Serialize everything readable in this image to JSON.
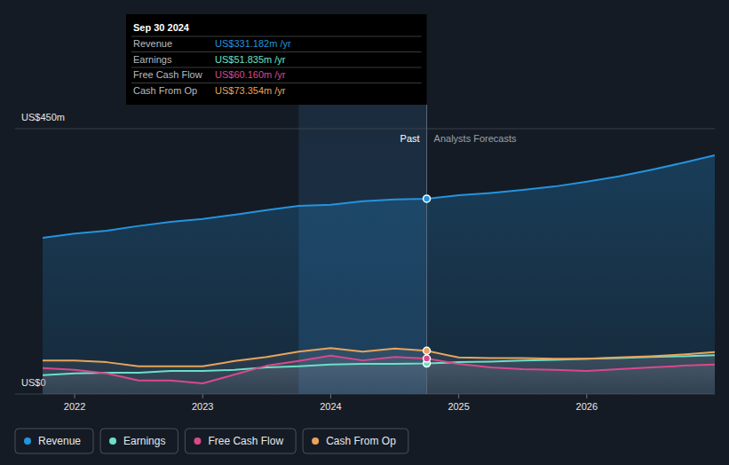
{
  "chart_data": {
    "type": "area",
    "x": [
      2021.75,
      2022,
      2022.25,
      2022.5,
      2022.75,
      2023,
      2023.25,
      2023.5,
      2023.75,
      2024,
      2024.25,
      2024.5,
      2024.75,
      2025,
      2025.25,
      2025.5,
      2025.75,
      2026,
      2026.25,
      2026.5,
      2026.75,
      2027
    ],
    "xlim": [
      2021.75,
      2027
    ],
    "xticks": [
      2022,
      2023,
      2024,
      2025,
      2026
    ],
    "ylim": [
      0,
      450
    ],
    "yticks": [
      {
        "value": 0,
        "label": "US$0"
      },
      {
        "value": 450,
        "label": "US$450m"
      }
    ],
    "grid": true,
    "legend": "bottom",
    "series": [
      {
        "name": "Revenue",
        "color": "#2394df",
        "values": [
          265,
          272,
          277,
          285,
          292,
          297,
          304,
          312,
          319,
          321,
          327,
          330,
          331.182,
          337,
          341,
          346,
          352,
          360,
          369,
          380,
          392,
          405
        ]
      },
      {
        "name": "Earnings",
        "color": "#6ce0c7",
        "values": [
          32,
          35,
          36,
          36,
          39,
          39,
          41,
          45,
          47,
          50,
          51,
          51,
          51.835,
          54,
          55,
          57,
          58,
          60,
          61,
          63,
          64,
          66
        ]
      },
      {
        "name": "Free Cash Flow",
        "color": "#d8498b",
        "values": [
          44,
          41,
          35,
          23,
          23,
          18,
          33,
          48,
          56,
          65,
          57,
          63,
          60.16,
          51,
          45,
          42,
          41,
          39,
          42,
          45,
          48,
          50
        ]
      },
      {
        "name": "Cash From Op",
        "color": "#e8a45b",
        "values": [
          57,
          57,
          54,
          47,
          47,
          47,
          56,
          63,
          72,
          78,
          72,
          77,
          73.354,
          62,
          61,
          61,
          60,
          60,
          62,
          64,
          67,
          71
        ]
      }
    ],
    "highlight": [
      2023.75,
      2024.75
    ],
    "annotations": [
      {
        "x": 2024.75,
        "left": "Past",
        "right": "Analysts Forecasts"
      }
    ],
    "tooltip": {
      "x": 2024.75,
      "title": "Sep 30 2024",
      "rows": [
        {
          "label": "Revenue",
          "text": "US$331.182m /yr"
        },
        {
          "label": "Earnings",
          "text": "US$51.835m /yr"
        },
        {
          "label": "Free Cash Flow",
          "text": "US$60.160m /yr"
        },
        {
          "label": "Cash From Op",
          "text": "US$73.354m /yr"
        }
      ]
    }
  }
}
